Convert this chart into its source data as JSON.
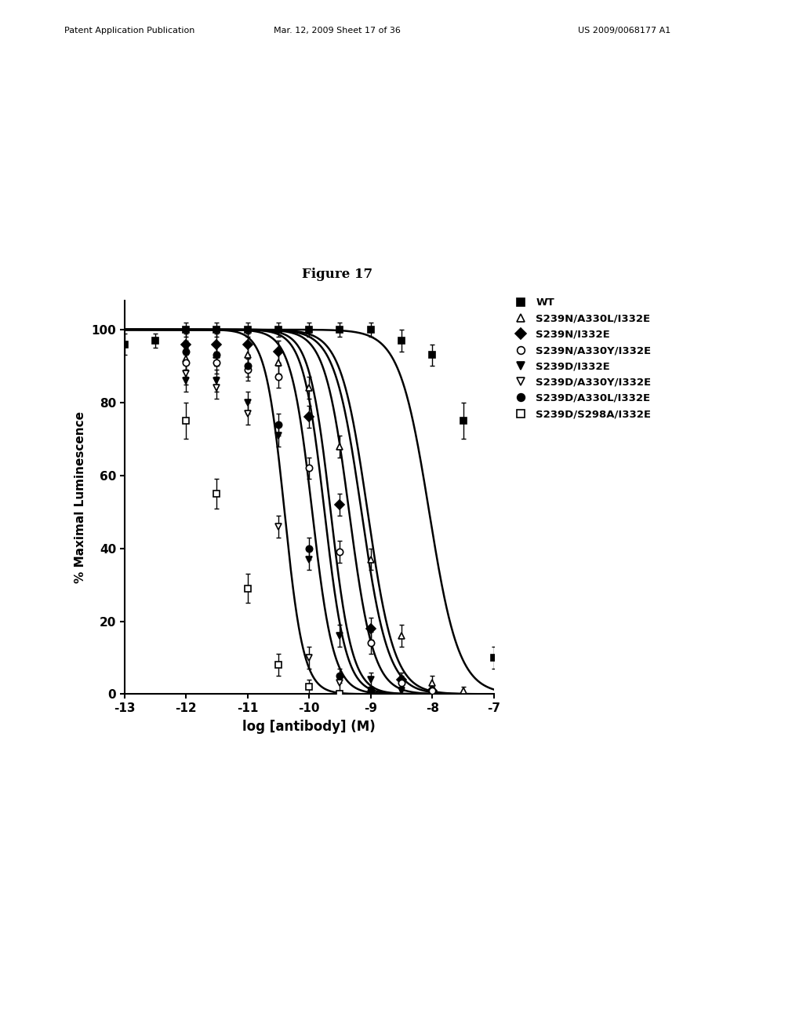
{
  "figure_title": "Figure 17",
  "xlabel": "log [antibody] (M)",
  "ylabel": "% Maximal Luminescence",
  "xlim": [
    -13,
    -7
  ],
  "ylim": [
    0,
    108
  ],
  "xticks": [
    -13,
    -12,
    -11,
    -10,
    -9,
    -8,
    -7
  ],
  "yticks": [
    0,
    20,
    40,
    60,
    80,
    100
  ],
  "background_color": "#ffffff",
  "header_left": "Patent Application Publication",
  "header_mid": "Mar. 12, 2009 Sheet 17 of 36",
  "header_right": "US 2009/0068177 A1",
  "series": [
    {
      "label": "WT",
      "marker": "s",
      "filled": true,
      "ec50": -8.05,
      "hill": 1.8
    },
    {
      "label": "S239N/A330L/I332E",
      "marker": "^",
      "filled": false,
      "ec50": -9.05,
      "hill": 2.0
    },
    {
      "label": "S239N/I332E",
      "marker": "D",
      "filled": true,
      "ec50": -9.35,
      "hill": 2.2
    },
    {
      "label": "S239N/A330Y/I332E",
      "marker": "o",
      "filled": false,
      "ec50": -9.15,
      "hill": 2.0
    },
    {
      "label": "S239D/I332E",
      "marker": "v",
      "filled": true,
      "ec50": -9.75,
      "hill": 2.5
    },
    {
      "label": "S239D/A330Y/I332E",
      "marker": "v",
      "filled": false,
      "ec50": -9.95,
      "hill": 2.5
    },
    {
      "label": "S239D/A330L/I332E",
      "marker": "o",
      "filled": true,
      "ec50": -9.65,
      "hill": 2.5
    },
    {
      "label": "S239D/S298A/I332E",
      "marker": "s",
      "filled": false,
      "ec50": -10.4,
      "hill": 2.8
    }
  ],
  "scatter": {
    "WT": {
      "x": [
        -13.0,
        -12.5,
        -12.0,
        -11.5,
        -11.0,
        -10.5,
        -10.0,
        -9.5,
        -9.0,
        -8.5,
        -8.0,
        -7.5,
        -7.0
      ],
      "y": [
        96,
        97,
        100,
        100,
        100,
        100,
        100,
        100,
        100,
        97,
        93,
        75,
        10
      ],
      "yerr": [
        3,
        2,
        2,
        2,
        2,
        2,
        2,
        2,
        2,
        3,
        3,
        5,
        3
      ]
    },
    "S239N/A330L/I332E": {
      "x": [
        -12.0,
        -11.5,
        -11.0,
        -10.5,
        -10.0,
        -9.5,
        -9.0,
        -8.5,
        -8.0,
        -7.5
      ],
      "y": [
        92,
        93,
        93,
        91,
        84,
        68,
        37,
        16,
        3,
        1
      ],
      "yerr": [
        3,
        3,
        3,
        3,
        3,
        3,
        3,
        3,
        2,
        1
      ]
    },
    "S239N/I332E": {
      "x": [
        -12.0,
        -11.5,
        -11.0,
        -10.5,
        -10.0,
        -9.5,
        -9.0,
        -8.5,
        -8.0
      ],
      "y": [
        96,
        96,
        96,
        94,
        76,
        52,
        18,
        4,
        1
      ],
      "yerr": [
        3,
        3,
        3,
        3,
        3,
        3,
        3,
        2,
        1
      ]
    },
    "S239N/A330Y/I332E": {
      "x": [
        -12.0,
        -11.5,
        -11.0,
        -10.5,
        -10.0,
        -9.5,
        -9.0,
        -8.5,
        -8.0
      ],
      "y": [
        91,
        91,
        89,
        87,
        62,
        39,
        14,
        3,
        1
      ],
      "yerr": [
        4,
        3,
        3,
        3,
        3,
        3,
        3,
        2,
        1
      ]
    },
    "S239D/I332E": {
      "x": [
        -12.0,
        -11.5,
        -11.0,
        -10.5,
        -10.0,
        -9.5,
        -9.0,
        -8.5
      ],
      "y": [
        86,
        86,
        80,
        71,
        37,
        16,
        4,
        1
      ],
      "yerr": [
        3,
        3,
        3,
        3,
        3,
        3,
        2,
        1
      ]
    },
    "S239D/A330Y/I332E": {
      "x": [
        -12.0,
        -11.5,
        -11.0,
        -10.5,
        -10.0,
        -9.5,
        -9.0
      ],
      "y": [
        88,
        84,
        77,
        46,
        10,
        3,
        1
      ],
      "yerr": [
        3,
        3,
        3,
        3,
        3,
        2,
        1
      ]
    },
    "S239D/A330L/I332E": {
      "x": [
        -12.0,
        -11.5,
        -11.0,
        -10.5,
        -10.0,
        -9.5,
        -9.0
      ],
      "y": [
        94,
        93,
        90,
        74,
        40,
        5,
        1
      ],
      "yerr": [
        3,
        3,
        3,
        3,
        3,
        2,
        1
      ]
    },
    "S239D/S298A/I332E": {
      "x": [
        -12.0,
        -11.5,
        -11.0,
        -10.5,
        -10.0,
        -9.5
      ],
      "y": [
        75,
        55,
        29,
        8,
        2,
        0
      ],
      "yerr": [
        5,
        4,
        4,
        3,
        2,
        1
      ]
    }
  }
}
